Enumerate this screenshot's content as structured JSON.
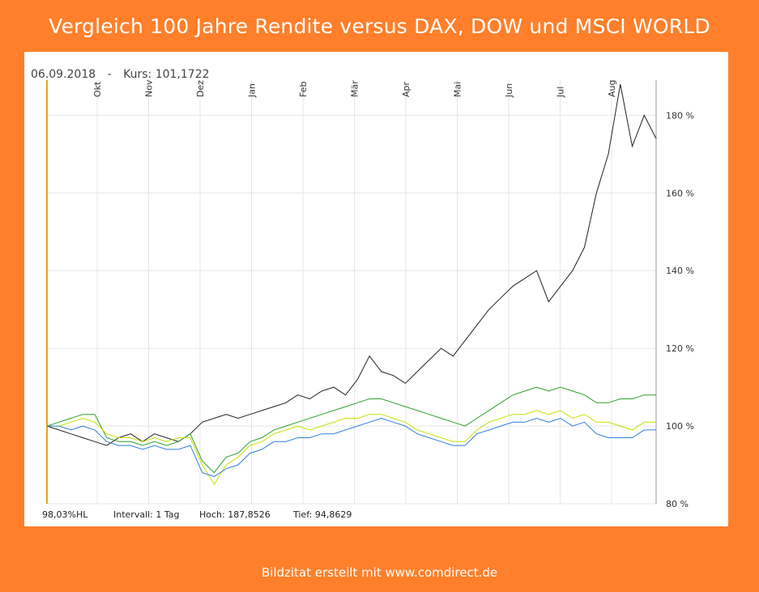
{
  "page": {
    "title": "Vergleich 100 Jahre Rendite versus DAX, DOW und MSCI WORLD",
    "footer": "Bildzitat erstellt mit www.comdirect.de"
  },
  "info": {
    "date": "06.09.2018",
    "separator": "-",
    "kurs": "Kurs: 101,1722"
  },
  "stats": {
    "left": "98,03%HL",
    "interval": "Intervall: 1 Tag",
    "high": "Hoch: 187,8526",
    "low": "Tief: 94,8629"
  },
  "colors": {
    "background": "#ff7f2a",
    "series_black": "#222222",
    "series_green": "#2ca02c",
    "series_lime": "#c8e000",
    "series_blue": "#2f7fd6",
    "start_marker": "#f0a020"
  },
  "chart_data": {
    "type": "line",
    "x_tick_labels": [
      "Okt",
      "Nov",
      "Dez",
      "Jan",
      "Feb",
      "Mär",
      "Apr",
      "Mai",
      "Jun",
      "Jul",
      "Aug"
    ],
    "y_tick_labels": [
      "80 %",
      "100 %",
      "120 %",
      "140 %",
      "160 %",
      "180 %"
    ],
    "ylim": [
      80,
      188
    ],
    "y_ticks": [
      80,
      100,
      120,
      140,
      160,
      180
    ],
    "grid": true,
    "x_positions": [
      0,
      1,
      2,
      3,
      4,
      5,
      6,
      7,
      8,
      9,
      10,
      11,
      12,
      13,
      14,
      15,
      16,
      17,
      18,
      19,
      20,
      21,
      22,
      23,
      24,
      25,
      26,
      27,
      28,
      29,
      30,
      31,
      32,
      33,
      34,
      35,
      36,
      37,
      38,
      39,
      40,
      41,
      42,
      43,
      44,
      45,
      46,
      47,
      48,
      49,
      50,
      51
    ],
    "series": [
      {
        "values": [
          100,
          99,
          98,
          97,
          96,
          95,
          97,
          98,
          96,
          98,
          97,
          96,
          98,
          101,
          102,
          103,
          102,
          103,
          104,
          105,
          106,
          108,
          107,
          109,
          110,
          108,
          112,
          118,
          114,
          113,
          111,
          114,
          117,
          120,
          118,
          122,
          126,
          130,
          133,
          136,
          138,
          140,
          132,
          136,
          140,
          146,
          160,
          170,
          188,
          172,
          180,
          174
        ]
      },
      {
        "values": [
          100,
          101,
          102,
          103,
          103,
          97,
          96,
          96,
          95,
          96,
          95,
          96,
          98,
          91,
          88,
          92,
          93,
          96,
          97,
          99,
          100,
          101,
          102,
          103,
          104,
          105,
          106,
          107,
          107,
          106,
          105,
          104,
          103,
          102,
          101,
          100,
          102,
          104,
          106,
          108,
          109,
          110,
          109,
          110,
          109,
          108,
          106,
          106,
          107,
          107,
          108,
          108
        ]
      },
      {
        "values": [
          100,
          100,
          101,
          102,
          101,
          98,
          97,
          97,
          96,
          97,
          96,
          97,
          97,
          90,
          85,
          90,
          92,
          95,
          96,
          98,
          99,
          100,
          99,
          100,
          101,
          102,
          102,
          103,
          103,
          102,
          101,
          99,
          98,
          97,
          96,
          96,
          99,
          101,
          102,
          103,
          103,
          104,
          103,
          104,
          102,
          103,
          101,
          101,
          100,
          99,
          101,
          101
        ]
      },
      {
        "values": [
          100,
          100,
          99,
          100,
          99,
          96,
          95,
          95,
          94,
          95,
          94,
          94,
          95,
          88,
          87,
          89,
          90,
          93,
          94,
          96,
          96,
          97,
          97,
          98,
          98,
          99,
          100,
          101,
          102,
          101,
          100,
          98,
          97,
          96,
          95,
          95,
          98,
          99,
          100,
          101,
          101,
          102,
          101,
          102,
          100,
          101,
          98,
          97,
          97,
          97,
          99,
          99
        ]
      }
    ]
  }
}
